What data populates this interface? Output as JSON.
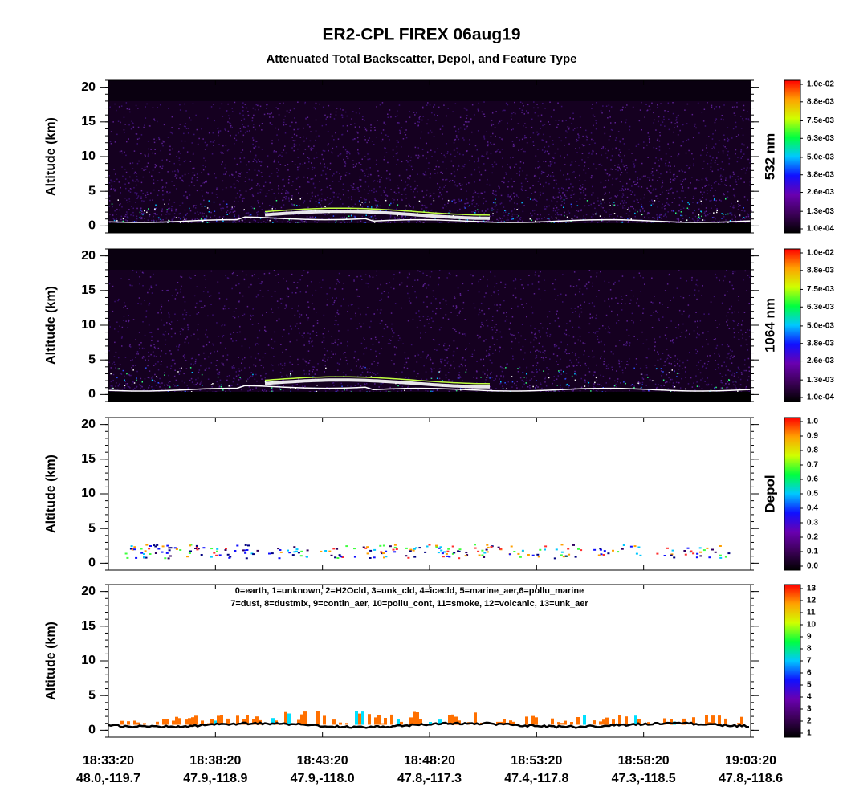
{
  "title": "ER2-CPL FIREX 06aug19",
  "subtitle": "Attenuated Total Backscatter, Depol, and Feature Type",
  "time_labels": [
    "18:33:20",
    "18:38:20",
    "18:43:20",
    "18:48:20",
    "18:53:20",
    "18:58:20",
    "19:03:20"
  ],
  "location_labels": [
    "48.0,-119.7",
    "47.9,-118.9",
    "47.9,-118.0",
    "47.8,-117.3",
    "47.4,-117.8",
    "47.3,-118.5",
    "47.8,-118.6"
  ],
  "colorscale": [
    "#000000",
    "#3c0058",
    "#6a00b0",
    "#1010ff",
    "#00c8ff",
    "#00ff40",
    "#d0ff00",
    "#ffa000",
    "#ff0000"
  ],
  "chart_data": [
    {
      "type": "heatmap",
      "ylabel": "Altitude (km)",
      "colorbar_label": "532 nm",
      "ylim": [
        -1,
        21
      ],
      "yticks": [
        0,
        5,
        10,
        15,
        20
      ],
      "clim": [
        0.0001,
        0.01
      ],
      "cticks": [
        {
          "value": 0.01,
          "label": "1.0e-02"
        },
        {
          "value": 0.0088,
          "label": "8.8e-03"
        },
        {
          "value": 0.0075,
          "label": "7.5e-03"
        },
        {
          "value": 0.0063,
          "label": "6.3e-03"
        },
        {
          "value": 0.005,
          "label": "5.0e-03"
        },
        {
          "value": 0.0038,
          "label": "3.8e-03"
        },
        {
          "value": 0.0026,
          "label": "2.6e-03"
        },
        {
          "value": 0.0013,
          "label": "1.3e-03"
        },
        {
          "value": 0.0001,
          "label": "1.0e-04"
        }
      ]
    },
    {
      "type": "heatmap",
      "ylabel": "Altitude (km)",
      "colorbar_label": "1064 nm",
      "ylim": [
        -1,
        21
      ],
      "yticks": [
        0,
        5,
        10,
        15,
        20
      ],
      "clim": [
        0.0001,
        0.01
      ],
      "cticks": [
        {
          "value": 0.01,
          "label": "1.0e-02"
        },
        {
          "value": 0.0088,
          "label": "8.8e-03"
        },
        {
          "value": 0.0075,
          "label": "7.5e-03"
        },
        {
          "value": 0.0063,
          "label": "6.3e-03"
        },
        {
          "value": 0.005,
          "label": "5.0e-03"
        },
        {
          "value": 0.0038,
          "label": "3.8e-03"
        },
        {
          "value": 0.0026,
          "label": "2.6e-03"
        },
        {
          "value": 0.0013,
          "label": "1.3e-03"
        },
        {
          "value": 0.0001,
          "label": "1.0e-04"
        }
      ]
    },
    {
      "type": "heatmap",
      "ylabel": "Altitude (km)",
      "colorbar_label": "Depol",
      "ylim": [
        -1,
        21
      ],
      "yticks": [
        0,
        5,
        10,
        15,
        20
      ],
      "clim": [
        0,
        1
      ],
      "cticks": [
        {
          "value": 1,
          "label": "1.0"
        },
        {
          "value": 0.9,
          "label": "0.9"
        },
        {
          "value": 0.8,
          "label": "0.8"
        },
        {
          "value": 0.7,
          "label": "0.7"
        },
        {
          "value": 0.6,
          "label": "0.6"
        },
        {
          "value": 0.5,
          "label": "0.5"
        },
        {
          "value": 0.4,
          "label": "0.4"
        },
        {
          "value": 0.3,
          "label": "0.3"
        },
        {
          "value": 0.2,
          "label": "0.2"
        },
        {
          "value": 0.1,
          "label": "0.1"
        },
        {
          "value": 0,
          "label": "0.0"
        }
      ]
    },
    {
      "type": "heatmap",
      "ylabel": "Altitude (km)",
      "ylim": [
        -1,
        21
      ],
      "yticks": [
        0,
        5,
        10,
        15,
        20
      ],
      "clim": [
        1,
        13
      ],
      "cticks": [
        13,
        12,
        11,
        10,
        9,
        8,
        7,
        6,
        5,
        4,
        3,
        2,
        1
      ],
      "annotation": [
        "0=earth, 1=unknown, 2=H2Ocld, 3=unk_cld, 4=icecld, 5=marine_aer,6=pollu_marine",
        "7=dust, 8=dustmix, 9=contin_aer, 10=pollu_cont, 11=smoke, 12=volcanic, 13=unk_aer"
      ]
    }
  ]
}
